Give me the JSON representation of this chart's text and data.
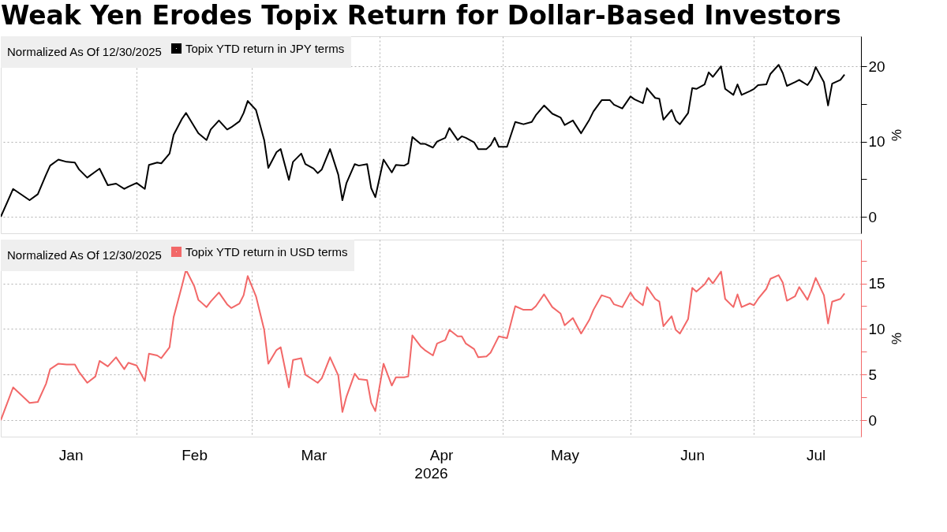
{
  "chart_data": [
    {
      "type": "line",
      "title": "Weak Yen Erodes Topix Return for Dollar-Based Investors",
      "legend_title": "Normalized As Of 12/30/2025",
      "legend": "top left",
      "grid": true,
      "tick_labels": "y",
      "ylabel": "%",
      "x": [
        "2025-12-30",
        "2026-01-02",
        "2026-01-06",
        "2026-01-08",
        "2026-01-10",
        "2026-01-11",
        "2026-01-13",
        "2026-01-15",
        "2026-01-17",
        "2026-01-18",
        "2026-01-20",
        "2026-01-22",
        "2026-01-23",
        "2026-01-25",
        "2026-01-27",
        "2026-01-29",
        "2026-01-30",
        "2026-02-01",
        "2026-02-03",
        "2026-02-04",
        "2026-02-06",
        "2026-02-07",
        "2026-02-09",
        "2026-02-10",
        "2026-02-12",
        "2026-02-13",
        "2026-02-15",
        "2026-02-16",
        "2026-02-18",
        "2026-02-19",
        "2026-02-21",
        "2026-02-23",
        "2026-02-24",
        "2026-02-26",
        "2026-02-27",
        "2026-02-28",
        "2026-03-02",
        "2026-03-04",
        "2026-03-05",
        "2026-03-07",
        "2026-03-08",
        "2026-03-10",
        "2026-03-11",
        "2026-03-13",
        "2026-03-14",
        "2026-03-16",
        "2026-03-17",
        "2026-03-18",
        "2026-03-20",
        "2026-03-22",
        "2026-03-23",
        "2026-03-24",
        "2026-03-26",
        "2026-03-27",
        "2026-03-29",
        "2026-03-30",
        "2026-03-31",
        "2026-04-02",
        "2026-04-04",
        "2026-04-05",
        "2026-04-07",
        "2026-04-08",
        "2026-04-09",
        "2026-04-11",
        "2026-04-12",
        "2026-04-14",
        "2026-04-15",
        "2026-04-17",
        "2026-04-18",
        "2026-04-20",
        "2026-04-21",
        "2026-04-22",
        "2026-04-24",
        "2026-04-25",
        "2026-04-27",
        "2026-04-28",
        "2026-04-29",
        "2026-04-30",
        "2026-05-02",
        "2026-05-04",
        "2026-05-06",
        "2026-05-08",
        "2026-05-09",
        "2026-05-11",
        "2026-05-13",
        "2026-05-15",
        "2026-05-16",
        "2026-05-18",
        "2026-05-20",
        "2026-05-22",
        "2026-05-23",
        "2026-05-25",
        "2026-05-27",
        "2026-05-28",
        "2026-05-30",
        "2026-06-01",
        "2026-06-02",
        "2026-06-04",
        "2026-06-05",
        "2026-06-07",
        "2026-06-08",
        "2026-06-09",
        "2026-06-11",
        "2026-06-12",
        "2026-06-13",
        "2026-06-15",
        "2026-06-16",
        "2026-06-17",
        "2026-06-19",
        "2026-06-20",
        "2026-06-21",
        "2026-06-23",
        "2026-06-24",
        "2026-06-26",
        "2026-06-27",
        "2026-06-28",
        "2026-06-30",
        "2026-07-01",
        "2026-07-02",
        "2026-07-04",
        "2026-07-05",
        "2026-07-07",
        "2026-07-08",
        "2026-07-09",
        "2026-07-11",
        "2026-07-12",
        "2026-07-14",
        "2026-07-15",
        "2026-07-16",
        "2026-07-18",
        "2026-07-19",
        "2026-07-20",
        "2026-07-22",
        "2026-07-23"
      ],
      "series": [
        {
          "name": "Topix YTD return in JPY terms",
          "color": "#000000",
          "values": [
            0.0,
            3.7,
            2.2,
            3.0,
            5.6,
            6.8,
            7.6,
            7.3,
            7.2,
            6.3,
            5.2,
            6.0,
            6.4,
            4.2,
            4.4,
            3.7,
            4.0,
            4.5,
            3.7,
            6.9,
            7.2,
            7.1,
            8.4,
            10.9,
            13.0,
            13.8,
            12.0,
            11.1,
            10.2,
            11.6,
            12.8,
            11.6,
            11.9,
            12.7,
            13.8,
            15.4,
            14.2,
            10.2,
            6.5,
            8.6,
            9.0,
            4.9,
            7.3,
            8.4,
            7.0,
            6.4,
            5.8,
            6.3,
            9.0,
            5.6,
            2.2,
            4.5,
            7.0,
            6.8,
            7.0,
            3.8,
            2.6,
            7.6,
            5.9,
            6.9,
            6.8,
            7.1,
            10.6,
            9.7,
            9.7,
            9.2,
            10.0,
            10.5,
            11.8,
            10.2,
            10.7,
            10.5,
            9.9,
            9.0,
            9.0,
            9.5,
            10.5,
            9.3,
            9.3,
            12.6,
            12.3,
            12.6,
            13.5,
            14.8,
            13.7,
            13.2,
            12.2,
            12.8,
            11.1,
            12.9,
            14.0,
            15.5,
            15.5,
            14.9,
            14.4,
            16.0,
            15.6,
            15.1,
            17.1,
            15.8,
            15.7,
            12.9,
            14.2,
            12.8,
            12.3,
            13.8,
            17.1,
            17.0,
            17.6,
            19.2,
            18.6,
            20.0,
            17.0,
            16.2,
            17.6,
            16.2,
            16.7,
            17.0,
            17.5,
            17.6,
            19.0,
            20.2,
            19.1,
            17.4,
            17.9,
            18.2,
            17.5,
            18.3,
            19.9,
            17.9,
            14.8,
            17.7,
            18.2,
            18.9
          ]
        }
      ],
      "xlim": [
        "2025-12-30",
        "2026-07-27"
      ],
      "xticks": [
        {
          "value": "2026-02-01",
          "label": null
        },
        {
          "value": "2026-03-01",
          "label": null
        },
        {
          "value": "2026-04-01",
          "label": null
        },
        {
          "value": "2026-05-01",
          "label": null
        },
        {
          "value": "2026-06-01",
          "label": null
        },
        {
          "value": "2026-07-01",
          "label": null
        }
      ],
      "ylim": [
        -2.2,
        24
      ],
      "yticks": [
        0,
        {
          "value": 5,
          "label": null
        },
        10,
        {
          "value": 15,
          "label": null
        },
        20
      ]
    },
    {
      "type": "line",
      "legend_title": "Normalized As Of 12/30/2025",
      "legend": "top left",
      "grid": true,
      "ylabel": "%",
      "xlabel": "2026",
      "x": [
        "2025-12-30",
        "2026-01-02",
        "2026-01-06",
        "2026-01-08",
        "2026-01-10",
        "2026-01-11",
        "2026-01-13",
        "2026-01-15",
        "2026-01-17",
        "2026-01-18",
        "2026-01-20",
        "2026-01-22",
        "2026-01-23",
        "2026-01-25",
        "2026-01-27",
        "2026-01-29",
        "2026-01-30",
        "2026-02-01",
        "2026-02-03",
        "2026-02-04",
        "2026-02-06",
        "2026-02-07",
        "2026-02-09",
        "2026-02-10",
        "2026-02-12",
        "2026-02-13",
        "2026-02-15",
        "2026-02-16",
        "2026-02-18",
        "2026-02-19",
        "2026-02-21",
        "2026-02-23",
        "2026-02-24",
        "2026-02-26",
        "2026-02-27",
        "2026-02-28",
        "2026-03-02",
        "2026-03-04",
        "2026-03-05",
        "2026-03-07",
        "2026-03-08",
        "2026-03-10",
        "2026-03-11",
        "2026-03-13",
        "2026-03-14",
        "2026-03-16",
        "2026-03-17",
        "2026-03-18",
        "2026-03-20",
        "2026-03-22",
        "2026-03-23",
        "2026-03-24",
        "2026-03-26",
        "2026-03-27",
        "2026-03-29",
        "2026-03-30",
        "2026-03-31",
        "2026-04-02",
        "2026-04-04",
        "2026-04-05",
        "2026-04-07",
        "2026-04-08",
        "2026-04-09",
        "2026-04-11",
        "2026-04-12",
        "2026-04-14",
        "2026-04-15",
        "2026-04-17",
        "2026-04-18",
        "2026-04-20",
        "2026-04-21",
        "2026-04-22",
        "2026-04-24",
        "2026-04-25",
        "2026-04-27",
        "2026-04-28",
        "2026-04-29",
        "2026-04-30",
        "2026-05-02",
        "2026-05-04",
        "2026-05-06",
        "2026-05-08",
        "2026-05-09",
        "2026-05-11",
        "2026-05-13",
        "2026-05-15",
        "2026-05-16",
        "2026-05-18",
        "2026-05-20",
        "2026-05-22",
        "2026-05-23",
        "2026-05-25",
        "2026-05-27",
        "2026-05-28",
        "2026-05-30",
        "2026-06-01",
        "2026-06-02",
        "2026-06-04",
        "2026-06-05",
        "2026-06-07",
        "2026-06-08",
        "2026-06-09",
        "2026-06-11",
        "2026-06-12",
        "2026-06-13",
        "2026-06-15",
        "2026-06-16",
        "2026-06-17",
        "2026-06-19",
        "2026-06-20",
        "2026-06-21",
        "2026-06-23",
        "2026-06-24",
        "2026-06-26",
        "2026-06-27",
        "2026-06-28",
        "2026-06-30",
        "2026-07-01",
        "2026-07-02",
        "2026-07-04",
        "2026-07-05",
        "2026-07-07",
        "2026-07-08",
        "2026-07-09",
        "2026-07-11",
        "2026-07-12",
        "2026-07-14",
        "2026-07-15",
        "2026-07-16",
        "2026-07-18",
        "2026-07-19",
        "2026-07-20",
        "2026-07-22",
        "2026-07-23"
      ],
      "series": [
        {
          "name": "Topix YTD return in USD terms",
          "color": "#f26868",
          "values": [
            0.0,
            3.6,
            1.9,
            2.0,
            4.0,
            5.6,
            6.2,
            6.1,
            6.1,
            5.3,
            4.1,
            4.8,
            6.5,
            5.9,
            6.9,
            5.6,
            6.3,
            6.0,
            4.3,
            7.3,
            7.1,
            6.8,
            8.0,
            11.3,
            14.7,
            16.5,
            14.7,
            13.2,
            12.4,
            13.0,
            14.0,
            12.7,
            12.3,
            12.8,
            13.7,
            15.8,
            13.6,
            9.9,
            6.2,
            7.7,
            8.0,
            3.6,
            6.6,
            6.8,
            5.0,
            4.4,
            4.1,
            4.6,
            6.9,
            4.9,
            0.9,
            2.6,
            5.1,
            4.5,
            4.4,
            1.9,
            1.0,
            6.2,
            3.8,
            4.7,
            4.7,
            4.8,
            9.3,
            8.1,
            7.7,
            7.1,
            8.4,
            8.8,
            9.9,
            9.2,
            9.2,
            8.4,
            7.8,
            6.9,
            7.0,
            7.4,
            8.3,
            9.2,
            9.0,
            12.5,
            12.1,
            12.1,
            12.5,
            13.8,
            12.4,
            11.7,
            10.4,
            11.2,
            9.5,
            11.0,
            12.1,
            13.7,
            13.4,
            12.7,
            12.4,
            14.0,
            13.3,
            12.6,
            14.6,
            13.3,
            13.0,
            10.3,
            11.4,
            9.9,
            9.5,
            11.1,
            14.5,
            14.1,
            14.9,
            15.6,
            15.0,
            16.3,
            13.3,
            12.4,
            13.8,
            12.4,
            12.8,
            12.6,
            13.3,
            14.4,
            15.5,
            15.9,
            15.1,
            13.1,
            13.6,
            14.6,
            13.2,
            14.3,
            15.6,
            13.7,
            10.6,
            13.0,
            13.3,
            13.9
          ]
        }
      ],
      "xlim": [
        "2025-12-30",
        "2026-07-27"
      ],
      "xticks": [
        {
          "value": "2026-01-16",
          "label": "Jan"
        },
        {
          "value": "2026-02-01",
          "label": null
        },
        {
          "value": "2026-02-15",
          "label": "Feb"
        },
        {
          "value": "2026-03-01",
          "label": null
        },
        {
          "value": "2026-03-16",
          "label": "Mar"
        },
        {
          "value": "2026-04-01",
          "label": null
        },
        {
          "value": "2026-04-16",
          "label": "Apr"
        },
        {
          "value": "2026-05-01",
          "label": null
        },
        {
          "value": "2026-05-16",
          "label": "May"
        },
        {
          "value": "2026-06-01",
          "label": null
        },
        {
          "value": "2026-06-16",
          "label": "Jun"
        },
        {
          "value": "2026-07-01",
          "label": null
        },
        {
          "value": "2026-07-16",
          "label": "Jul"
        }
      ],
      "ylim": [
        -1.8,
        19.8
      ],
      "yticks": [
        0,
        {
          "value": 2.5,
          "label": null
        },
        5,
        {
          "value": 7.5,
          "label": null
        },
        10,
        {
          "value": 12.5,
          "label": null
        },
        15,
        {
          "value": 17.5,
          "label": null
        }
      ]
    }
  ]
}
